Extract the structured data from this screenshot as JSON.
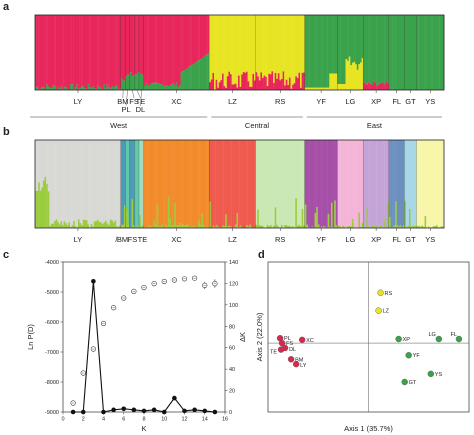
{
  "panels": {
    "a": {
      "label": "a",
      "populations": [
        {
          "name": "LY",
          "w": 25,
          "colors": [
            "#e8265c",
            "#3aa24a"
          ],
          "fill": [
            [
              1.0,
              0.0
            ]
          ]
        },
        {
          "name": "BM",
          "w": 1.3,
          "colors": [
            "#e8265c",
            "#3aa24a"
          ],
          "fill": [
            [
              0.88,
              0.12
            ]
          ]
        },
        {
          "name": "PL",
          "w": 1.3,
          "colors": [
            "#e8265c",
            "#3aa24a"
          ],
          "fill": [
            [
              0.85,
              0.15
            ]
          ]
        },
        {
          "name": "FS",
          "w": 1.4,
          "colors": [
            "#e8265c",
            "#3aa24a"
          ],
          "fill": [
            [
              0.84,
              0.16
            ]
          ]
        },
        {
          "name": "TE",
          "w": 1.3,
          "colors": [
            "#e8265c",
            "#3aa24a"
          ],
          "fill": [
            [
              0.83,
              0.17
            ]
          ]
        },
        {
          "name": "DL",
          "w": 1.4,
          "colors": [
            "#e8265c",
            "#3aa24a"
          ],
          "fill": [
            [
              0.82,
              0.18
            ]
          ]
        },
        {
          "name": "XC",
          "w": 19,
          "colors": [
            "#e8265c",
            "#3aa24a"
          ],
          "fill": [
            [
              0.78,
              0.22
            ]
          ]
        },
        {
          "name": "LZ",
          "w": 13.5,
          "colors": [
            "#e7e423",
            "#e8265c"
          ],
          "fill": [
            [
              0.95,
              0.05
            ]
          ]
        },
        {
          "name": "RS",
          "w": 14.3,
          "colors": [
            "#e7e423",
            "#e8265c"
          ],
          "fill": [
            [
              0.96,
              0.04
            ]
          ]
        },
        {
          "name": "YF",
          "w": 9.5,
          "colors": [
            "#3aa24a",
            "#e7e423"
          ],
          "fill": [
            [
              0.9,
              0.1
            ]
          ]
        },
        {
          "name": "LG",
          "w": 7.5,
          "colors": [
            "#3aa24a",
            "#e7e423"
          ],
          "fill": [
            [
              0.75,
              0.25
            ]
          ]
        },
        {
          "name": "XP",
          "w": 7.5,
          "colors": [
            "#3aa24a",
            "#e8265c"
          ],
          "fill": [
            [
              0.97,
              0.03
            ]
          ]
        },
        {
          "name": "FL",
          "w": 4.5,
          "colors": [
            "#3aa24a"
          ],
          "fill": [
            [
              1.0
            ]
          ]
        },
        {
          "name": "GT",
          "w": 3.5,
          "colors": [
            "#3aa24a"
          ],
          "fill": [
            [
              1.0
            ]
          ]
        },
        {
          "name": "YS",
          "w": 8,
          "colors": [
            "#3aa24a"
          ],
          "fill": [
            [
              1.0
            ]
          ]
        }
      ],
      "regions": [
        {
          "name": "West",
          "from": 0,
          "to": 6
        },
        {
          "name": "Central",
          "from": 7,
          "to": 8
        },
        {
          "name": "East",
          "from": 9,
          "to": 14
        }
      ]
    },
    "b": {
      "label": "b",
      "populations": [
        {
          "name": "LY",
          "w": 25,
          "colors": [
            "#d8d8d4",
            "#9bcc3d"
          ]
        },
        {
          "name": "BM",
          "w": 1.3,
          "colors": [
            "#4c9ab8",
            "#9bcc3d"
          ]
        },
        {
          "name": "PL",
          "w": 1.3,
          "colors": [
            "#5ec8a8",
            "#9bcc3d"
          ]
        },
        {
          "name": "FS",
          "w": 1.4,
          "colors": [
            "#4c9ab8",
            "#9bcc3d"
          ]
        },
        {
          "name": "TE",
          "w": 1.3,
          "colors": [
            "#5ec8a8",
            "#9bcc3d"
          ]
        },
        {
          "name": "DL",
          "w": 1.4,
          "colors": [
            "#a8d8c0",
            "#9bcc3d"
          ]
        },
        {
          "name": "XC",
          "w": 19,
          "colors": [
            "#f28b2a",
            "#9bcc3d"
          ]
        },
        {
          "name": "LZ",
          "w": 13.5,
          "colors": [
            "#f05a4e",
            "#9bcc3d"
          ]
        },
        {
          "name": "RS",
          "w": 14.3,
          "colors": [
            "#c9e8b4",
            "#9bcc3d"
          ]
        },
        {
          "name": "YF",
          "w": 9.5,
          "colors": [
            "#a64ea8",
            "#9bcc3d"
          ]
        },
        {
          "name": "LG",
          "w": 7.5,
          "colors": [
            "#f4b4d8",
            "#9bcc3d"
          ]
        },
        {
          "name": "XP",
          "w": 7.5,
          "colors": [
            "#c4a4d8",
            "#9bcc3d"
          ]
        },
        {
          "name": "FL",
          "w": 4.5,
          "colors": [
            "#6b8fbf",
            "#9bcc3d"
          ]
        },
        {
          "name": "GT",
          "w": 3.5,
          "colors": [
            "#a8d8e8",
            "#9bcc3d"
          ]
        },
        {
          "name": "YS",
          "w": 8,
          "colors": [
            "#f8f6a8",
            "#9bcc3d"
          ]
        }
      ]
    },
    "c": {
      "label": "c",
      "chart_data": {
        "type": "line",
        "x": [
          1,
          2,
          3,
          4,
          5,
          6,
          7,
          8,
          9,
          10,
          11,
          12,
          13,
          14,
          15
        ],
        "xlabel": "K",
        "ylabel": "Ln P(D)",
        "ylabel_right": "ΔK",
        "xlim": [
          0,
          16
        ],
        "ylim": [
          -9000,
          -4000
        ],
        "ylim_right": [
          0,
          140
        ],
        "xticks": [
          0,
          2,
          4,
          6,
          8,
          10,
          12,
          14,
          16
        ],
        "yticks": [
          -9000,
          -8000,
          -7000,
          -6000,
          -5000,
          -4000
        ],
        "yticks_right": [
          0,
          20,
          40,
          60,
          80,
          100,
          120,
          140
        ],
        "series": [
          {
            "axis": "left",
            "marker": "open-circle",
            "values": [
              -8700,
              -7700,
              -6900,
              -6050,
              -5520,
              -5200,
              -4980,
              -4850,
              -4720,
              -4650,
              -4600,
              -4560,
              -4540,
              -4780,
              -4720
            ],
            "error": [
              0,
              0,
              0,
              0,
              0,
              0,
              0,
              0,
              0,
              0,
              0,
              0,
              0,
              120,
              140
            ]
          },
          {
            "axis": "right",
            "marker": "filled-circle",
            "values": [
              0,
              0,
              122,
              0,
              2,
              3,
              2,
              1,
              2,
              0,
              13,
              1,
              2,
              1,
              0
            ]
          }
        ]
      }
    },
    "d": {
      "label": "d",
      "chart_data": {
        "type": "scatter",
        "xlabel": "Axis 1 (35.7%)",
        "ylabel": "Axis 2 (22.0%)",
        "xlim": [
          -1.0,
          1.0
        ],
        "ylim": [
          -0.85,
          1.0
        ],
        "points": [
          {
            "label": "RS",
            "x": 0.12,
            "y": 0.62,
            "color": "#e7e423"
          },
          {
            "label": "LZ",
            "x": 0.1,
            "y": 0.4,
            "color": "#e7e423"
          },
          {
            "label": "PL",
            "x": -0.88,
            "y": 0.06,
            "color": "#d8284f"
          },
          {
            "label": "FS",
            "x": -0.86,
            "y": 0.0,
            "color": "#d8284f"
          },
          {
            "label": "XC",
            "x": -0.66,
            "y": 0.04,
            "color": "#d8284f"
          },
          {
            "label": "DL",
            "x": -0.83,
            "y": -0.06,
            "color": "#d8284f"
          },
          {
            "label": "TE",
            "x": -0.87,
            "y": -0.08,
            "color": "#d8284f"
          },
          {
            "label": "BM",
            "x": -0.77,
            "y": -0.2,
            "color": "#d8284f"
          },
          {
            "label": "LY",
            "x": -0.72,
            "y": -0.26,
            "color": "#d8284f"
          },
          {
            "label": "XP",
            "x": 0.3,
            "y": 0.05,
            "color": "#3aa24a"
          },
          {
            "label": "LG",
            "x": 0.7,
            "y": 0.05,
            "color": "#3aa24a"
          },
          {
            "label": "FL",
            "x": 0.9,
            "y": 0.05,
            "color": "#3aa24a"
          },
          {
            "label": "YF",
            "x": 0.4,
            "y": -0.15,
            "color": "#3aa24a"
          },
          {
            "label": "YS",
            "x": 0.62,
            "y": -0.38,
            "color": "#3aa24a"
          },
          {
            "label": "GT",
            "x": 0.36,
            "y": -0.48,
            "color": "#3aa24a"
          }
        ]
      }
    }
  }
}
